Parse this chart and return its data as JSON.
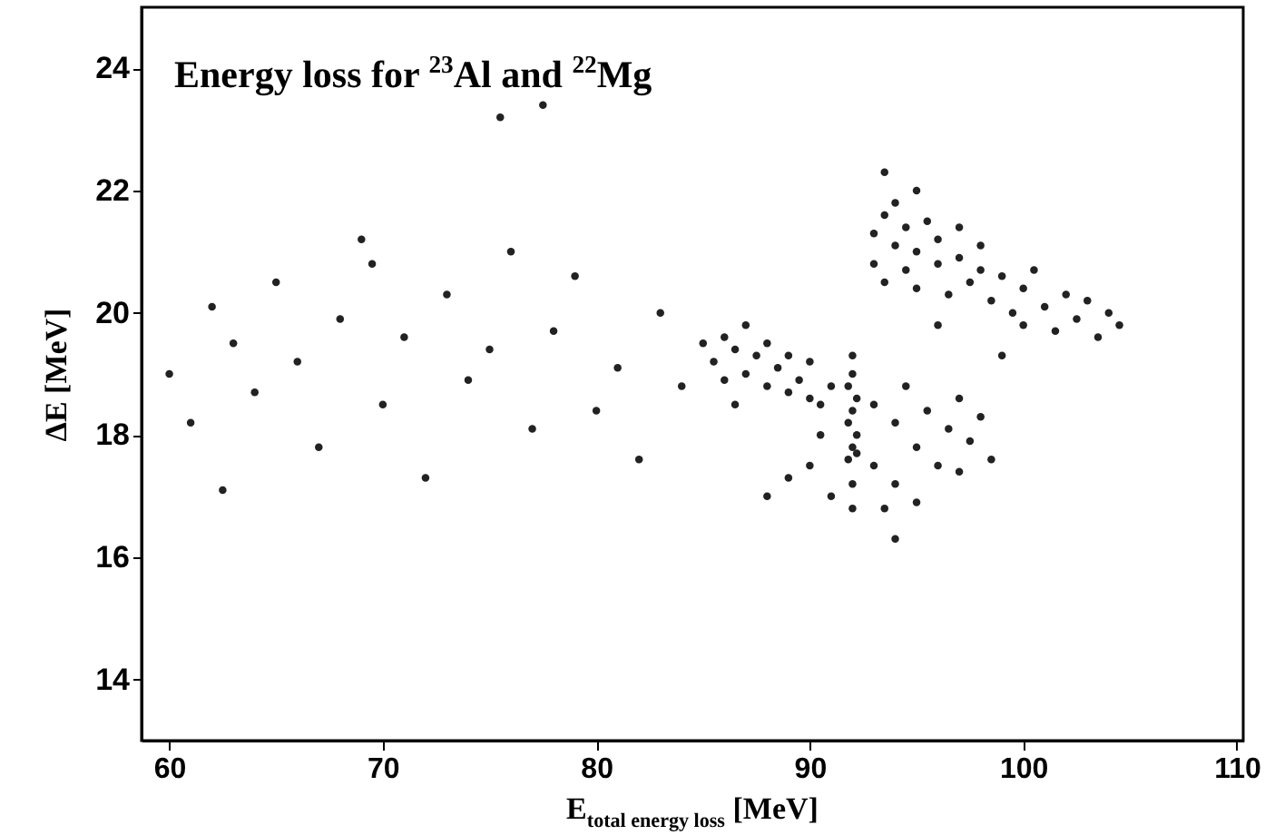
{
  "chart_data": {
    "type": "scatter",
    "title": "Energy loss for  $^{23}$Al and  $^{22}$Mg",
    "xlabel": "E$_{total energy loss}$ [MeV]",
    "ylabel": "ΔE [MeV]",
    "x": [
      60,
      61,
      62,
      62.5,
      63,
      64,
      65,
      66,
      67,
      68,
      69,
      70,
      71,
      72,
      73,
      74,
      75,
      76,
      77,
      78,
      79,
      80,
      81,
      82,
      83,
      84,
      85,
      75.5,
      69.5,
      77.5,
      85.5,
      86,
      86,
      86.5,
      87,
      87,
      87.5,
      88,
      88,
      88.5,
      89,
      89,
      89.5,
      90,
      90,
      90.5,
      91,
      86.5,
      91.8,
      92.0,
      92.2,
      91.8,
      92.0,
      92.2,
      91.8,
      92.0,
      92.2,
      92.0,
      92.0,
      92.0,
      90,
      91,
      90.5,
      93,
      93,
      93.5,
      94,
      94,
      94.5,
      95,
      95,
      95.5,
      96,
      96.5,
      97,
      97,
      97.5,
      98,
      98.5,
      94,
      89,
      88,
      93,
      93,
      93.5,
      93.5,
      94,
      94,
      94.5,
      94.5,
      95,
      95,
      95.5,
      96,
      96,
      96.5,
      97,
      97,
      97.5,
      98,
      98,
      98.5,
      99,
      99.5,
      100,
      100,
      100.5,
      101,
      101.5,
      102,
      102.5,
      103,
      103.5,
      104,
      104.5,
      93.5,
      95,
      99,
      96
    ],
    "values": [
      19,
      18.2,
      20.1,
      17.1,
      19.5,
      18.7,
      20.5,
      19.2,
      17.8,
      19.9,
      21.2,
      18.5,
      19.6,
      17.3,
      20.3,
      18.9,
      19.4,
      21.0,
      18.1,
      19.7,
      20.6,
      18.4,
      19.1,
      17.6,
      20.0,
      18.8,
      19.5,
      23.2,
      20.8,
      23.4,
      19.2,
      19.6,
      18.9,
      19.4,
      19.0,
      19.8,
      19.3,
      18.8,
      19.5,
      19.1,
      18.7,
      19.3,
      18.9,
      18.6,
      19.2,
      18.5,
      18.8,
      18.5,
      17.6,
      17.8,
      18.0,
      18.2,
      18.4,
      18.6,
      18.8,
      19.0,
      17.7,
      17.2,
      16.8,
      19.3,
      17.5,
      17.0,
      18.0,
      18.5,
      17.5,
      16.8,
      18.2,
      17.2,
      18.8,
      17.8,
      16.9,
      18.4,
      17.5,
      18.1,
      17.4,
      18.6,
      17.9,
      18.3,
      17.6,
      16.3,
      17.3,
      17.0,
      21.3,
      20.8,
      21.6,
      20.5,
      21.1,
      21.8,
      20.7,
      21.4,
      21.0,
      20.4,
      21.5,
      20.8,
      21.2,
      20.3,
      20.9,
      21.4,
      20.5,
      20.7,
      21.1,
      20.2,
      20.6,
      20.0,
      20.4,
      19.8,
      20.7,
      20.1,
      19.7,
      20.3,
      19.9,
      20.2,
      19.6,
      20.0,
      19.8,
      22.3,
      22.0,
      19.3,
      19.8
    ],
    "color": "#222222",
    "marker": "circle",
    "xlim": [
      58.7,
      110.3
    ],
    "ylim": [
      13,
      25
    ],
    "xticks": [
      60,
      70,
      80,
      90,
      100,
      110
    ],
    "yticks": [
      14,
      16,
      18,
      20,
      22,
      24
    ]
  }
}
